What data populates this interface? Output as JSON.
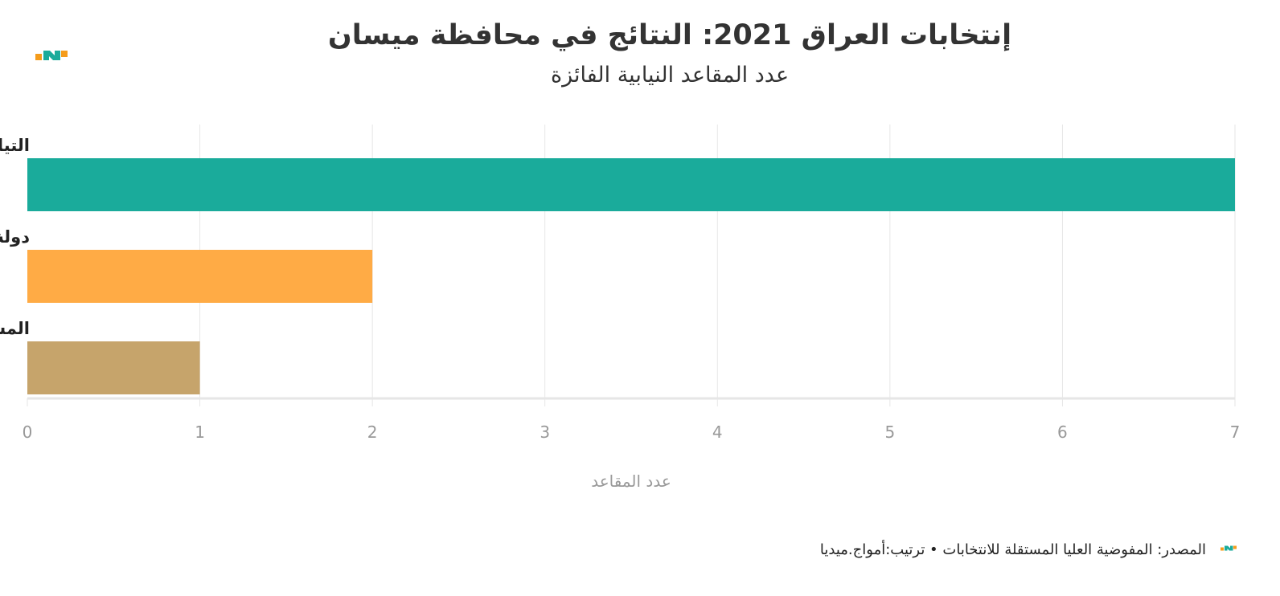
{
  "header": {
    "title": "إنتخابات العراق 2021: النتائج في محافظة ميسان",
    "subtitle": "عدد المقاعد النيابية الفائزة"
  },
  "logo": {
    "icon": "awaj-media-logo-icon",
    "colors": [
      "#f59c1b",
      "#1aab9b"
    ]
  },
  "footer": {
    "text": "المصدر: المفوضية العليا المستقلة للانتخابات • ترتيب:أمواج.ميديا"
  },
  "chart_data": {
    "type": "bar",
    "orientation": "horizontal",
    "categories": [
      "التيار الصدري",
      "دولة القانون",
      "المستقلون"
    ],
    "values": [
      7,
      2,
      1
    ],
    "colors": [
      "#1aab9b",
      "#ffab45",
      "#c6a46b"
    ],
    "xlabel": "عدد المقاعد",
    "ylabel": "",
    "xlim": [
      0,
      7
    ],
    "xticks": [
      0,
      1,
      2,
      3,
      4,
      5,
      6,
      7
    ],
    "grid": true,
    "legend": "none"
  }
}
